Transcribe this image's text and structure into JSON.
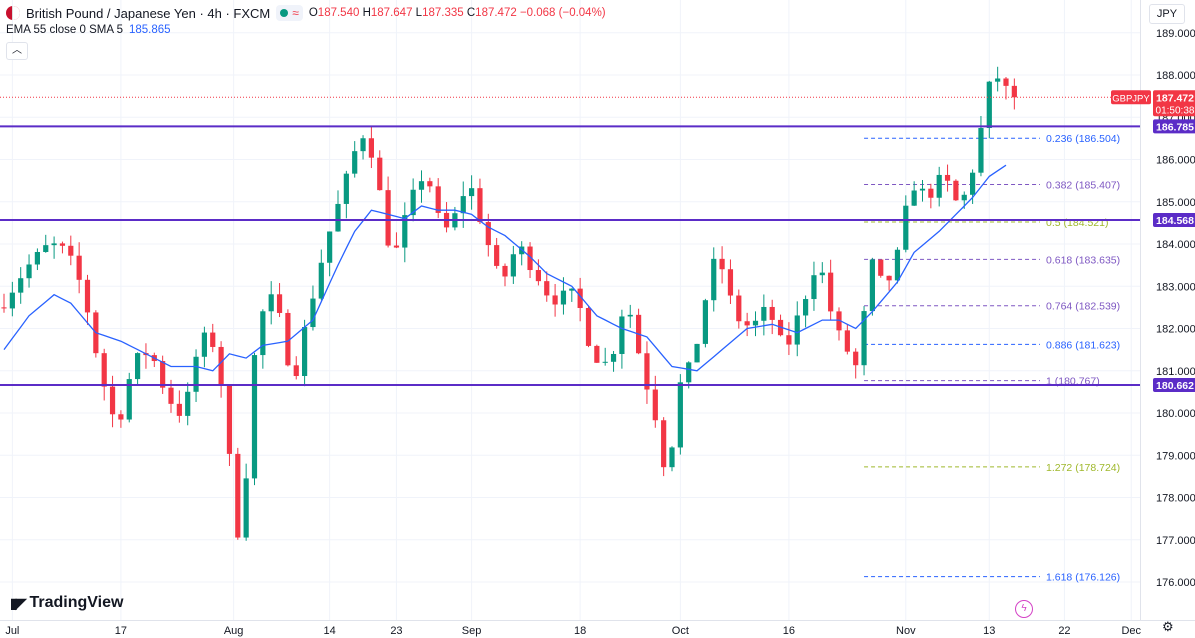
{
  "header": {
    "title": "British Pound / Japanese Yen · 4h · FXCM",
    "ohlc": [
      {
        "k": "O",
        "v": "187.540"
      },
      {
        "k": "H",
        "v": "187.647"
      },
      {
        "k": "L",
        "v": "187.335"
      },
      {
        "k": "C",
        "v": "187.472"
      }
    ],
    "change": "−0.068 (−0.04%)",
    "indicator_label": "EMA 55 close 0 SMA 5",
    "indicator_value": "185.865",
    "collapse_icon": "chevron-up-icon"
  },
  "currency_button": "JPY",
  "branding": {
    "name": "TradingView"
  },
  "colors": {
    "up": "#089981",
    "down": "#f23645",
    "ema": "#2962ff",
    "levels": "#5b2cc7",
    "fib_blue": "#2962ff",
    "fib_purple": "#7e57c2",
    "fib_green": "#9fb82b",
    "grid": "#f0f3fa"
  },
  "chart_data": {
    "type": "candlestick",
    "symbol": "GBPJPY",
    "timeframe": "4h",
    "x_ticks": [
      "Jul",
      "17",
      "Aug",
      "14",
      "23",
      "Sep",
      "18",
      "Oct",
      "16",
      "Nov",
      "13",
      "22",
      "Dec"
    ],
    "y_ticks": [
      "176.000",
      "177.000",
      "178.000",
      "179.000",
      "180.000",
      "181.000",
      "182.000",
      "183.000",
      "184.000",
      "185.000",
      "186.000",
      "187.000",
      "188.000",
      "189.000"
    ],
    "ylim": [
      175.2,
      189.3
    ],
    "price_path": [
      [
        0,
        182.5
      ],
      [
        3,
        183.4
      ],
      [
        6,
        184.0
      ],
      [
        8,
        183.8
      ],
      [
        10,
        182.9
      ],
      [
        12,
        181.0
      ],
      [
        14,
        179.6
      ],
      [
        16,
        181.2
      ],
      [
        18,
        181.5
      ],
      [
        20,
        180.4
      ],
      [
        22,
        179.9
      ],
      [
        24,
        181.8
      ],
      [
        26,
        181.6
      ],
      [
        28,
        178.0
      ],
      [
        29,
        176.4
      ],
      [
        30,
        180.8
      ],
      [
        32,
        182.9
      ],
      [
        34,
        182.0
      ],
      [
        35,
        180.6
      ],
      [
        37,
        182.4
      ],
      [
        39,
        184.0
      ],
      [
        41,
        185.2
      ],
      [
        43,
        186.5
      ],
      [
        44,
        186.7
      ],
      [
        46,
        184.7
      ],
      [
        47,
        183.5
      ],
      [
        49,
        184.9
      ],
      [
        51,
        185.8
      ],
      [
        53,
        184.2
      ],
      [
        55,
        184.8
      ],
      [
        56,
        185.6
      ],
      [
        58,
        184.3
      ],
      [
        60,
        183.0
      ],
      [
        62,
        184.0
      ],
      [
        64,
        183.4
      ],
      [
        66,
        182.7
      ],
      [
        69,
        182.8
      ],
      [
        71,
        181.4
      ],
      [
        73,
        181.1
      ],
      [
        75,
        182.8
      ],
      [
        77,
        181.0
      ],
      [
        79,
        179.6
      ],
      [
        80,
        178.1
      ],
      [
        81,
        180.5
      ],
      [
        83,
        181.2
      ],
      [
        85,
        183.2
      ],
      [
        86,
        183.8
      ],
      [
        88,
        182.3
      ],
      [
        90,
        182.0
      ],
      [
        92,
        182.5
      ],
      [
        94,
        181.4
      ],
      [
        96,
        182.5
      ],
      [
        98,
        183.7
      ],
      [
        100,
        182.0
      ],
      [
        102,
        181.3
      ],
      [
        103,
        180.9
      ],
      [
        104,
        183.7
      ],
      [
        106,
        182.9
      ],
      [
        108,
        184.0
      ],
      [
        109,
        185.5
      ],
      [
        111,
        185.1
      ],
      [
        113,
        185.6
      ],
      [
        115,
        184.8
      ],
      [
        117,
        186.1
      ],
      [
        118,
        187.3
      ],
      [
        119,
        188.1
      ],
      [
        120,
        187.8
      ],
      [
        121,
        187.472
      ]
    ],
    "ema_path": [
      [
        0,
        181.5
      ],
      [
        3,
        182.3
      ],
      [
        6,
        182.8
      ],
      [
        8,
        182.6
      ],
      [
        11,
        181.9
      ],
      [
        14,
        181.7
      ],
      [
        17,
        181.4
      ],
      [
        20,
        181.1
      ],
      [
        23,
        181.1
      ],
      [
        25,
        181.0
      ],
      [
        27,
        181.4
      ],
      [
        29,
        181.3
      ],
      [
        31,
        181.6
      ],
      [
        34,
        181.7
      ],
      [
        37,
        182.2
      ],
      [
        40,
        183.5
      ],
      [
        42,
        184.3
      ],
      [
        44,
        184.8
      ],
      [
        46,
        184.7
      ],
      [
        48,
        184.6
      ],
      [
        50,
        184.9
      ],
      [
        52,
        184.8
      ],
      [
        54,
        184.8
      ],
      [
        56,
        184.7
      ],
      [
        58,
        184.4
      ],
      [
        60,
        184.2
      ],
      [
        63,
        183.7
      ],
      [
        65,
        183.3
      ],
      [
        68,
        183.0
      ],
      [
        71,
        182.3
      ],
      [
        74,
        182.0
      ],
      [
        77,
        181.8
      ],
      [
        80,
        181.1
      ],
      [
        83,
        181.0
      ],
      [
        86,
        181.5
      ],
      [
        89,
        182.0
      ],
      [
        92,
        182.1
      ],
      [
        95,
        181.9
      ],
      [
        98,
        182.2
      ],
      [
        100,
        182.2
      ],
      [
        102,
        182.0
      ],
      [
        104,
        182.4
      ],
      [
        107,
        183.1
      ],
      [
        109,
        183.8
      ],
      [
        112,
        184.3
      ],
      [
        114,
        184.7
      ],
      [
        116,
        185.1
      ],
      [
        118,
        185.6
      ],
      [
        120,
        185.865
      ]
    ],
    "horizontal_levels": [
      {
        "price": 186.785,
        "label": "186.785"
      },
      {
        "price": 184.568,
        "label": "184.568"
      },
      {
        "price": 180.662,
        "label": "180.662"
      }
    ],
    "fibonacci": {
      "start_index": 103,
      "end_index": 117,
      "levels": [
        {
          "ratio_label": "0.236 (186.504)",
          "price": 186.504,
          "color": "#2962ff"
        },
        {
          "ratio_label": "0.382 (185.407)",
          "price": 185.407,
          "color": "#7e57c2"
        },
        {
          "ratio_label": "0.5 (184.521)",
          "price": 184.521,
          "color": "#9fb82b"
        },
        {
          "ratio_label": "0.618 (183.635)",
          "price": 183.635,
          "color": "#7e57c2"
        },
        {
          "ratio_label": "0.764 (182.539)",
          "price": 182.539,
          "color": "#7e57c2"
        },
        {
          "ratio_label": "0.886 (181.623)",
          "price": 181.623,
          "color": "#2962ff"
        },
        {
          "ratio_label": "1 (180.767)",
          "price": 180.767,
          "color": "#7e57c2"
        },
        {
          "ratio_label": "1.272 (178.724)",
          "price": 178.724,
          "color": "#9fb82b"
        },
        {
          "ratio_label": "1.618 (176.126)",
          "price": 176.126,
          "color": "#2962ff"
        }
      ]
    },
    "last_price": {
      "symbol": "GBPJPY",
      "value": "187.472",
      "countdown": "01:50:38",
      "price": 187.472
    }
  }
}
